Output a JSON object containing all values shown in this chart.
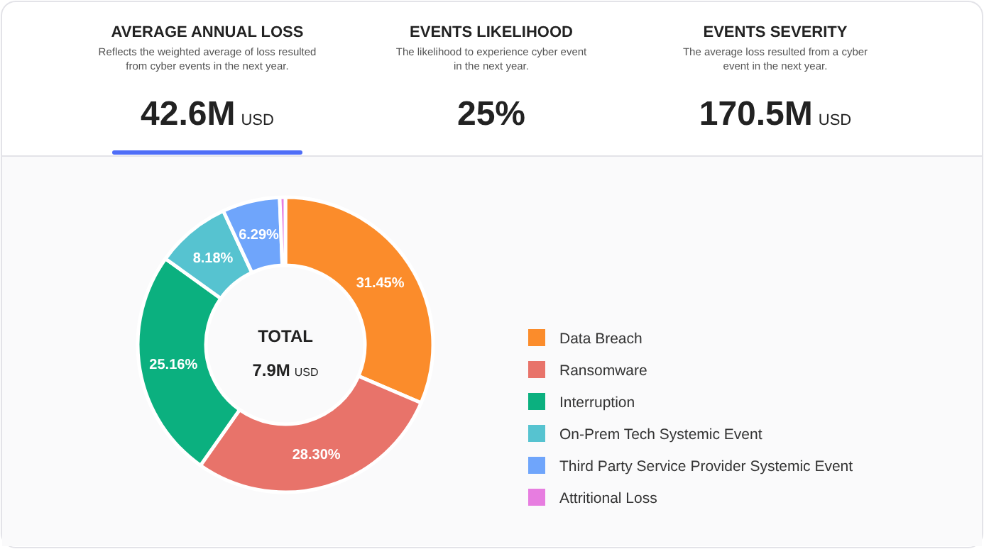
{
  "chart_data": [
    {
      "type": "other",
      "annotations": [
        "AVERAGE ANNUAL LOSS",
        "Reflects the weighted average of loss resulted\nfrom cyber events in the next year.",
        "42.6M USD",
        "EVENTS LIKELIHOOD",
        "The likelihood to experience cyber event\nin the next year.",
        "25%",
        "EVENTS SEVERITY",
        "The average loss resulted from a cyber\nevent in the next year.",
        "170.5M USD"
      ]
    },
    {
      "type": "donut",
      "categories": [
        "Data Breach",
        "Ransomware",
        "Interruption",
        "On-Prem Tech Systemic Event",
        "Third Party Service Provider Systemic Event",
        "Attritional Loss"
      ],
      "values": [
        31.45,
        28.3,
        25.16,
        8.18,
        6.29,
        0.62
      ],
      "colors": [
        "#fb8c2b",
        "#e8736a",
        "#0bb07f",
        "#56c3d0",
        "#6fa5fb",
        "#e77de0"
      ],
      "value_labels": [
        "31.45%",
        "28.30%",
        "25.16%",
        "8.18%",
        "6.29%",
        null
      ],
      "legend": "right",
      "annotations": [
        "TOTAL",
        "7.9M USD"
      ]
    }
  ]
}
